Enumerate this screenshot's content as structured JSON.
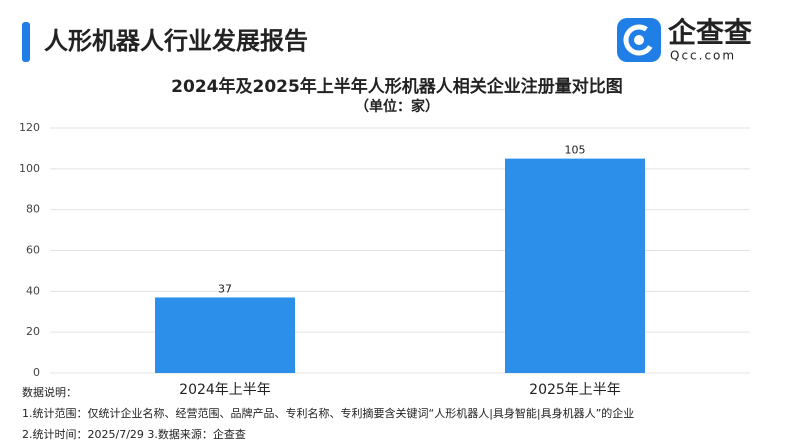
{
  "header": {
    "title": "人形机器人行业发展报告"
  },
  "logo": {
    "name": "企查查",
    "domain": "Qcc.com"
  },
  "chart_data": {
    "type": "bar",
    "title": "2024年及2025年上半年人形机器人相关企业注册量对比图",
    "subtitle": "（单位：家）",
    "categories": [
      "2024年上半年",
      "2025年上半年"
    ],
    "values": [
      37,
      105
    ],
    "color": "#2c8fe9",
    "ylim": [
      0,
      120
    ],
    "yticks": [
      0,
      20,
      40,
      60,
      80,
      100,
      120
    ],
    "grid": true
  },
  "notes": {
    "heading": "数据说明：",
    "lines": [
      "1.统计范围：仅统计企业名称、经营范围、品牌产品、专利名称、专利摘要含关键词“人形机器人|具身智能|具身机器人”的企业",
      "2.统计时间：2025/7/29  3.数据来源：企查查"
    ]
  }
}
